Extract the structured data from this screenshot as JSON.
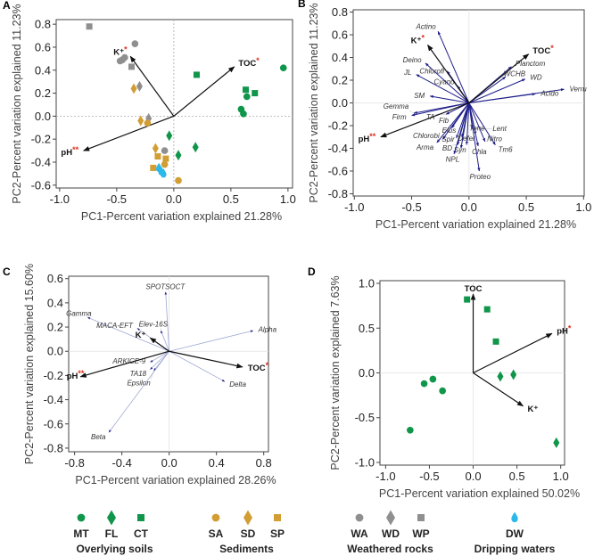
{
  "colors": {
    "soil": "#10964a",
    "sed": "#d29e33",
    "rock": "#8f8f8f",
    "water": "#2bb8ea",
    "vector": "#1f1f8a",
    "vector_light": "#9fa7d3",
    "star": "#e0301e"
  },
  "legend": {
    "groups": [
      {
        "name": "Overlying soils",
        "color": "soil",
        "items": [
          {
            "code": "MT",
            "shape": "circle"
          },
          {
            "code": "FL",
            "shape": "diamond"
          },
          {
            "code": "CT",
            "shape": "square"
          }
        ]
      },
      {
        "name": "Sediments",
        "color": "sed",
        "items": [
          {
            "code": "SA",
            "shape": "circle"
          },
          {
            "code": "SD",
            "shape": "diamond"
          },
          {
            "code": "SP",
            "shape": "square"
          }
        ]
      },
      {
        "name": "Weathered rocks",
        "color": "rock",
        "items": [
          {
            "code": "WA",
            "shape": "circle"
          },
          {
            "code": "WD",
            "shape": "diamond"
          },
          {
            "code": "WP",
            "shape": "square"
          }
        ]
      },
      {
        "name": "Dripping waters",
        "color": "water",
        "items": [
          {
            "code": "DW",
            "shape": "drop"
          }
        ]
      }
    ]
  },
  "chart_data": [
    {
      "panel": "A",
      "type": "scatter",
      "xlabel": "PC1-Percent variation explained 21.28%",
      "ylabel": "PC2-Percent variation explained 11.23%",
      "xlim": [
        -1.03,
        1.04
      ],
      "ylim": [
        -0.625,
        0.84
      ],
      "xticks": [
        "-1.0",
        "-0.5",
        "0.0",
        "0.5",
        "1.0"
      ],
      "yticks": [
        "-0.6",
        "-0.4",
        "-0.2",
        "0.0",
        "0.2",
        "0.4",
        "0.6",
        "0.8"
      ],
      "zero_style": "dotted",
      "points": [
        {
          "g": "WP",
          "x": -0.74,
          "y": 0.78
        },
        {
          "g": "WA",
          "x": -0.34,
          "y": 0.63
        },
        {
          "g": "WA",
          "x": -0.47,
          "y": 0.48
        },
        {
          "g": "WA",
          "x": -0.45,
          "y": 0.49
        },
        {
          "g": "WA",
          "x": -0.43,
          "y": 0.51
        },
        {
          "g": "WP",
          "x": -0.37,
          "y": 0.43
        },
        {
          "g": "SD",
          "x": -0.35,
          "y": 0.24
        },
        {
          "g": "WD",
          "x": -0.3,
          "y": 0.26
        },
        {
          "g": "SD",
          "x": -0.29,
          "y": -0.04
        },
        {
          "g": "WD",
          "x": -0.22,
          "y": -0.02
        },
        {
          "g": "SA",
          "x": -0.23,
          "y": -0.06
        },
        {
          "g": "FL",
          "x": -0.04,
          "y": -0.17
        },
        {
          "g": "FL",
          "x": 0.04,
          "y": -0.34
        },
        {
          "g": "FL",
          "x": 0.19,
          "y": -0.27
        },
        {
          "g": "CT",
          "x": 0.2,
          "y": 0.36
        },
        {
          "g": "CT",
          "x": 0.63,
          "y": 0.23
        },
        {
          "g": "CT",
          "x": 0.71,
          "y": 0.2
        },
        {
          "g": "MT",
          "x": 0.96,
          "y": 0.42
        },
        {
          "g": "MT",
          "x": 0.64,
          "y": 0.17
        },
        {
          "g": "MT",
          "x": 0.59,
          "y": 0.06
        },
        {
          "g": "MT",
          "x": 0.61,
          "y": 0.02
        },
        {
          "g": "SD",
          "x": -0.16,
          "y": -0.28
        },
        {
          "g": "WA",
          "x": -0.08,
          "y": -0.3
        },
        {
          "g": "SP",
          "x": -0.14,
          "y": -0.35
        },
        {
          "g": "SP",
          "x": -0.07,
          "y": -0.37
        },
        {
          "g": "SA",
          "x": -0.08,
          "y": -0.42
        },
        {
          "g": "SP",
          "x": -0.18,
          "y": -0.45
        },
        {
          "g": "DW",
          "x": -0.13,
          "y": -0.45
        },
        {
          "g": "DW",
          "x": -0.11,
          "y": -0.48
        },
        {
          "g": "DW",
          "x": -0.09,
          "y": -0.5
        },
        {
          "g": "SA",
          "x": 0.04,
          "y": -0.56
        }
      ],
      "vectors": [
        {
          "label": "K⁺",
          "sig": "*",
          "x": -0.38,
          "y": 0.52,
          "env": true
        },
        {
          "label": "TOC",
          "sig": "*",
          "x": 0.53,
          "y": 0.43,
          "env": true
        },
        {
          "label": "pH",
          "sig": "**",
          "x": -0.79,
          "y": -0.3,
          "env": true
        }
      ]
    },
    {
      "panel": "B",
      "type": "scatter",
      "xlabel": "PC1-Percent variation explained 21.28%",
      "ylabel": "PC2-Percent variation explained 11.23%",
      "xlim": [
        -1.01,
        1.005
      ],
      "ylim": [
        -0.82,
        0.82
      ],
      "xticks": [
        "-1.0",
        "-0.5",
        "0.0",
        "0.5",
        "1.0"
      ],
      "yticks": [
        "-0.8",
        "-0.6",
        "-0.4",
        "-0.2",
        "0.0",
        "0.2",
        "0.4",
        "0.6",
        "0.8"
      ],
      "zero_style": "solid",
      "points": [],
      "vectors": [
        {
          "label": "K⁺",
          "sig": "*",
          "x": -0.36,
          "y": 0.51,
          "env": true
        },
        {
          "label": "TOC",
          "sig": "*",
          "x": 0.52,
          "y": 0.43,
          "env": true
        },
        {
          "label": "pH",
          "sig": "**",
          "x": -0.77,
          "y": -0.3,
          "env": true
        },
        {
          "label": "Actino",
          "x": -0.27,
          "y": 0.63
        },
        {
          "label": "Deino",
          "x": -0.38,
          "y": 0.35
        },
        {
          "label": "JL",
          "x": -0.46,
          "y": 0.25
        },
        {
          "label": "SM",
          "x": -0.34,
          "y": 0.06
        },
        {
          "label": "Gemma",
          "x": -0.48,
          "y": -0.09
        },
        {
          "label": "Firm",
          "x": -0.5,
          "y": -0.11
        },
        {
          "label": "Chlorofl",
          "x": -0.19,
          "y": 0.28
        },
        {
          "label": "Cyano",
          "x": -0.1,
          "y": 0.15
        },
        {
          "label": "Planctom",
          "x": 0.37,
          "y": 0.32
        },
        {
          "label": "WCHB",
          "x": 0.32,
          "y": 0.23
        },
        {
          "label": "WD",
          "x": 0.49,
          "y": 0.21
        },
        {
          "label": "Verru",
          "x": 0.83,
          "y": 0.12
        },
        {
          "label": "Acido",
          "x": 0.58,
          "y": 0.08
        },
        {
          "label": "TA",
          "x": -0.2,
          "y": -0.1
        },
        {
          "label": "Fib",
          "x": -0.15,
          "y": -0.22
        },
        {
          "label": "Chlorobi",
          "x": -0.23,
          "y": -0.32
        },
        {
          "label": "Arma",
          "x": -0.28,
          "y": -0.35
        },
        {
          "label": "Spir",
          "x": -0.11,
          "y": -0.31
        },
        {
          "label": "BD",
          "x": -0.1,
          "y": -0.37
        },
        {
          "label": "Syn",
          "x": -0.07,
          "y": -0.4
        },
        {
          "label": "NPL",
          "x": -0.13,
          "y": -0.45
        },
        {
          "label": "Defer",
          "x": -0.02,
          "y": -0.37
        },
        {
          "label": "Elus",
          "x": -0.06,
          "y": -0.3
        },
        {
          "label": "Chla",
          "x": 0.08,
          "y": -0.38
        },
        {
          "label": "Proteo",
          "x": 0.09,
          "y": -0.6
        },
        {
          "label": "Lent",
          "x": 0.03,
          "y": -0.23
        },
        {
          "label": "Tene",
          "x": 0.06,
          "y": -0.28
        },
        {
          "label": "Nitro",
          "x": 0.14,
          "y": -0.34
        },
        {
          "label": "Tm6",
          "x": 0.23,
          "y": -0.37
        }
      ]
    },
    {
      "panel": "C",
      "type": "scatter",
      "xlabel": "PC1-Percent variation explained 28.26%",
      "ylabel": "PC2-Percent variation explained 15.60%",
      "xlim": [
        -0.85,
        0.84
      ],
      "ylim": [
        -0.83,
        0.62
      ],
      "xticks": [
        "-0.8",
        "-0.4",
        "0.0",
        "0.4",
        "0.8"
      ],
      "yticks": [
        "-0.8",
        "-0.6",
        "-0.4",
        "-0.2",
        "0.0",
        "0.2",
        "0.4",
        "0.6"
      ],
      "zero_style": "solid",
      "light": true,
      "points": [],
      "vectors": [
        {
          "label": "K⁺",
          "x": -0.16,
          "y": 0.11,
          "env": true
        },
        {
          "label": "TOC",
          "sig": "*",
          "x": 0.62,
          "y": -0.13,
          "env": true
        },
        {
          "label": "pH",
          "sig": "**",
          "x": -0.75,
          "y": -0.21,
          "env": true
        },
        {
          "label": "SPOTSOCT",
          "x": -0.03,
          "y": 0.49
        },
        {
          "label": "Gamma",
          "x": -0.69,
          "y": 0.28
        },
        {
          "label": "MACA-EFT",
          "x": -0.27,
          "y": 0.19
        },
        {
          "label": "Elev-16S",
          "x": -0.07,
          "y": 0.17
        },
        {
          "label": "Alpha",
          "x": 0.71,
          "y": 0.17
        },
        {
          "label": "ARKICE-9",
          "x": -0.16,
          "y": -0.09
        },
        {
          "label": "TA18",
          "x": -0.16,
          "y": -0.15
        },
        {
          "label": "Epsilon",
          "x": -0.13,
          "y": -0.16
        },
        {
          "label": "Delta",
          "x": 0.47,
          "y": -0.25
        },
        {
          "label": "Beta",
          "x": -0.51,
          "y": -0.67
        }
      ]
    },
    {
      "panel": "D",
      "type": "scatter",
      "xlabel": "PC1-Percent variation explained 50.02%",
      "ylabel": "PC2-Percent variation explained 7.63%",
      "xlim": [
        -1.065,
        1.044
      ],
      "ylim": [
        -1.03,
        1.03
      ],
      "xticks": [
        "-1.0",
        "-0.5",
        "0.0",
        "0.5",
        "1.0"
      ],
      "yticks": [
        "-1.0",
        "-0.5",
        "0.0",
        "0.5",
        "1.0"
      ],
      "zero_style": "solid",
      "points": [
        {
          "g": "CT",
          "x": -0.07,
          "y": 0.82
        },
        {
          "g": "CT",
          "x": 0.16,
          "y": 0.71
        },
        {
          "g": "CT",
          "x": 0.26,
          "y": 0.35
        },
        {
          "g": "FL",
          "x": 0.31,
          "y": -0.04
        },
        {
          "g": "FL",
          "x": 0.46,
          "y": -0.02
        },
        {
          "g": "FL",
          "x": 0.95,
          "y": -0.78
        },
        {
          "g": "MT",
          "x": -0.56,
          "y": -0.12
        },
        {
          "g": "MT",
          "x": -0.46,
          "y": -0.07
        },
        {
          "g": "MT",
          "x": -0.35,
          "y": -0.2
        },
        {
          "g": "MT",
          "x": -0.72,
          "y": -0.64
        }
      ],
      "vectors": [
        {
          "label": "TOC",
          "x": 0.0,
          "y": 0.88,
          "env": true
        },
        {
          "label": "pH",
          "sig": "*",
          "x": 0.9,
          "y": 0.44,
          "env": true
        },
        {
          "label": "K⁺",
          "x": 0.57,
          "y": -0.37,
          "env": true
        }
      ]
    }
  ]
}
